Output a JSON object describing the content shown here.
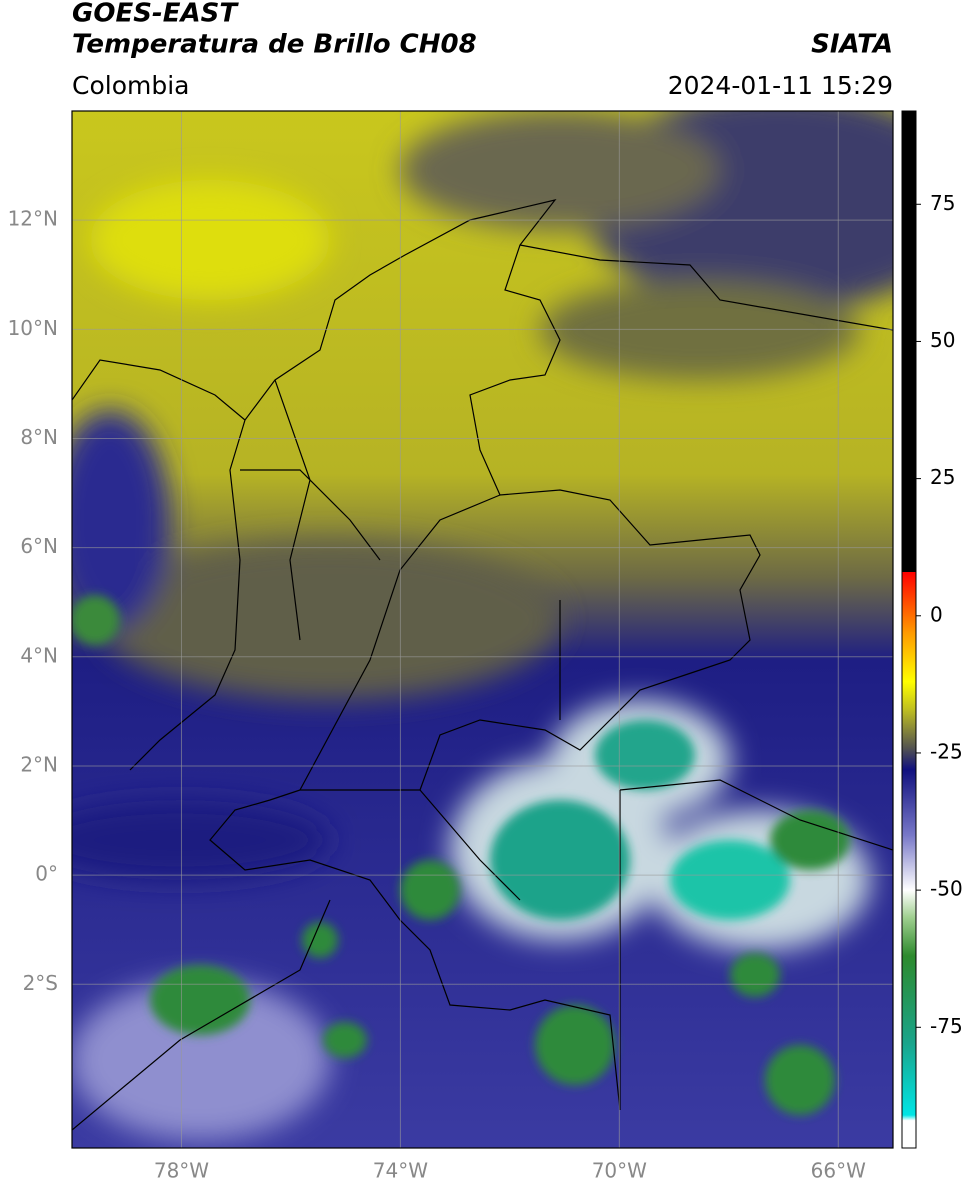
{
  "header": {
    "satellite": "GOES-EAST",
    "product": "Temperatura de Brillo CH08",
    "region": "Colombia",
    "source": "SIATA",
    "datetime": "2024-01-11 15:29"
  },
  "map": {
    "xlim": [
      -80,
      -65
    ],
    "ylim": [
      -5,
      14
    ],
    "xticks": [
      {
        "value": -78,
        "label": "78°W"
      },
      {
        "value": -74,
        "label": "74°W"
      },
      {
        "value": -70,
        "label": "70°W"
      },
      {
        "value": -66,
        "label": "66°W"
      }
    ],
    "yticks": [
      {
        "value": 12,
        "label": "12°N"
      },
      {
        "value": 10,
        "label": "10°N"
      },
      {
        "value": 8,
        "label": "8°N"
      },
      {
        "value": 6,
        "label": "6°N"
      },
      {
        "value": 4,
        "label": "4°N"
      },
      {
        "value": 2,
        "label": "2°N"
      },
      {
        "value": 0,
        "label": "0°"
      },
      {
        "value": -2,
        "label": "2°S"
      }
    ],
    "grid": true
  },
  "colorbar": {
    "lim": [
      -97,
      92
    ],
    "ticks": [
      75,
      50,
      25,
      0,
      -25,
      -50,
      -75
    ],
    "colormap": [
      {
        "value": -97,
        "color": "#ffffff"
      },
      {
        "value": -92,
        "color": "#ffffff"
      },
      {
        "value": -91,
        "color": "#00e5e5"
      },
      {
        "value": -78,
        "color": "#1aa58c"
      },
      {
        "value": -62,
        "color": "#2d8a2d"
      },
      {
        "value": -55,
        "color": "#9fcf8f"
      },
      {
        "value": -50,
        "color": "#ffffff"
      },
      {
        "value": -40,
        "color": "#7878c8"
      },
      {
        "value": -28,
        "color": "#10107e"
      },
      {
        "value": -24,
        "color": "#55554f"
      },
      {
        "value": -17,
        "color": "#c0c020"
      },
      {
        "value": -12,
        "color": "#ffff00"
      },
      {
        "value": -3,
        "color": "#ff9900"
      },
      {
        "value": 8,
        "color": "#ff0000"
      },
      {
        "value": 8.01,
        "color": "#000000"
      },
      {
        "value": 92,
        "color": "#000000"
      }
    ]
  }
}
